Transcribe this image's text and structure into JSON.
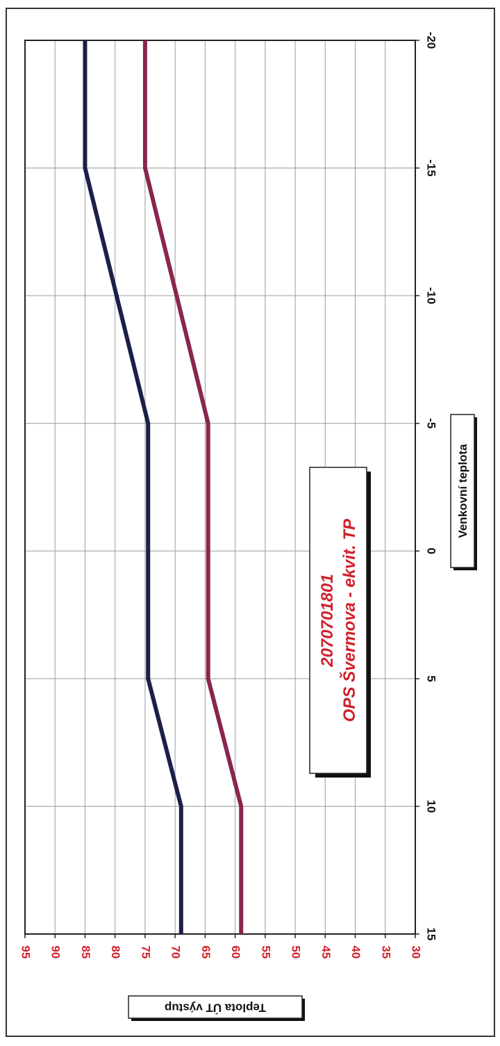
{
  "chart_data": {
    "type": "line",
    "title": "2070701801 OPS Švermova - ekvit. TP",
    "title_lines": [
      "2070701801",
      "OPS Švermova - ekvit. TP"
    ],
    "xlabel": "Venkovní teplota",
    "ylabel": "Teplota ÚT výstup",
    "xlim": [
      -20,
      15
    ],
    "ylim": [
      30,
      95
    ],
    "x_ticks": [
      -20,
      -15,
      -10,
      -5,
      0,
      5,
      10,
      15
    ],
    "y_ticks": [
      30,
      35,
      40,
      45,
      50,
      55,
      60,
      65,
      70,
      75,
      80,
      85,
      90,
      95
    ],
    "grid": true,
    "orientation": "rotated-90",
    "series": [
      {
        "color": "#1c1f4a",
        "x": [
          -20,
          -15,
          -5,
          5,
          10,
          15
        ],
        "y": [
          85,
          85,
          74.5,
          74.5,
          69,
          69
        ]
      },
      {
        "color": "#8a2550",
        "x": [
          -20,
          -15,
          -5,
          5,
          10,
          15
        ],
        "y": [
          75,
          75,
          64.5,
          64.5,
          59,
          59
        ]
      }
    ],
    "colors": {
      "axis_tick_labels": "#d0202a",
      "title_text": "#d0202a",
      "grid": "#9a9a9a",
      "frame": "#222222"
    }
  }
}
